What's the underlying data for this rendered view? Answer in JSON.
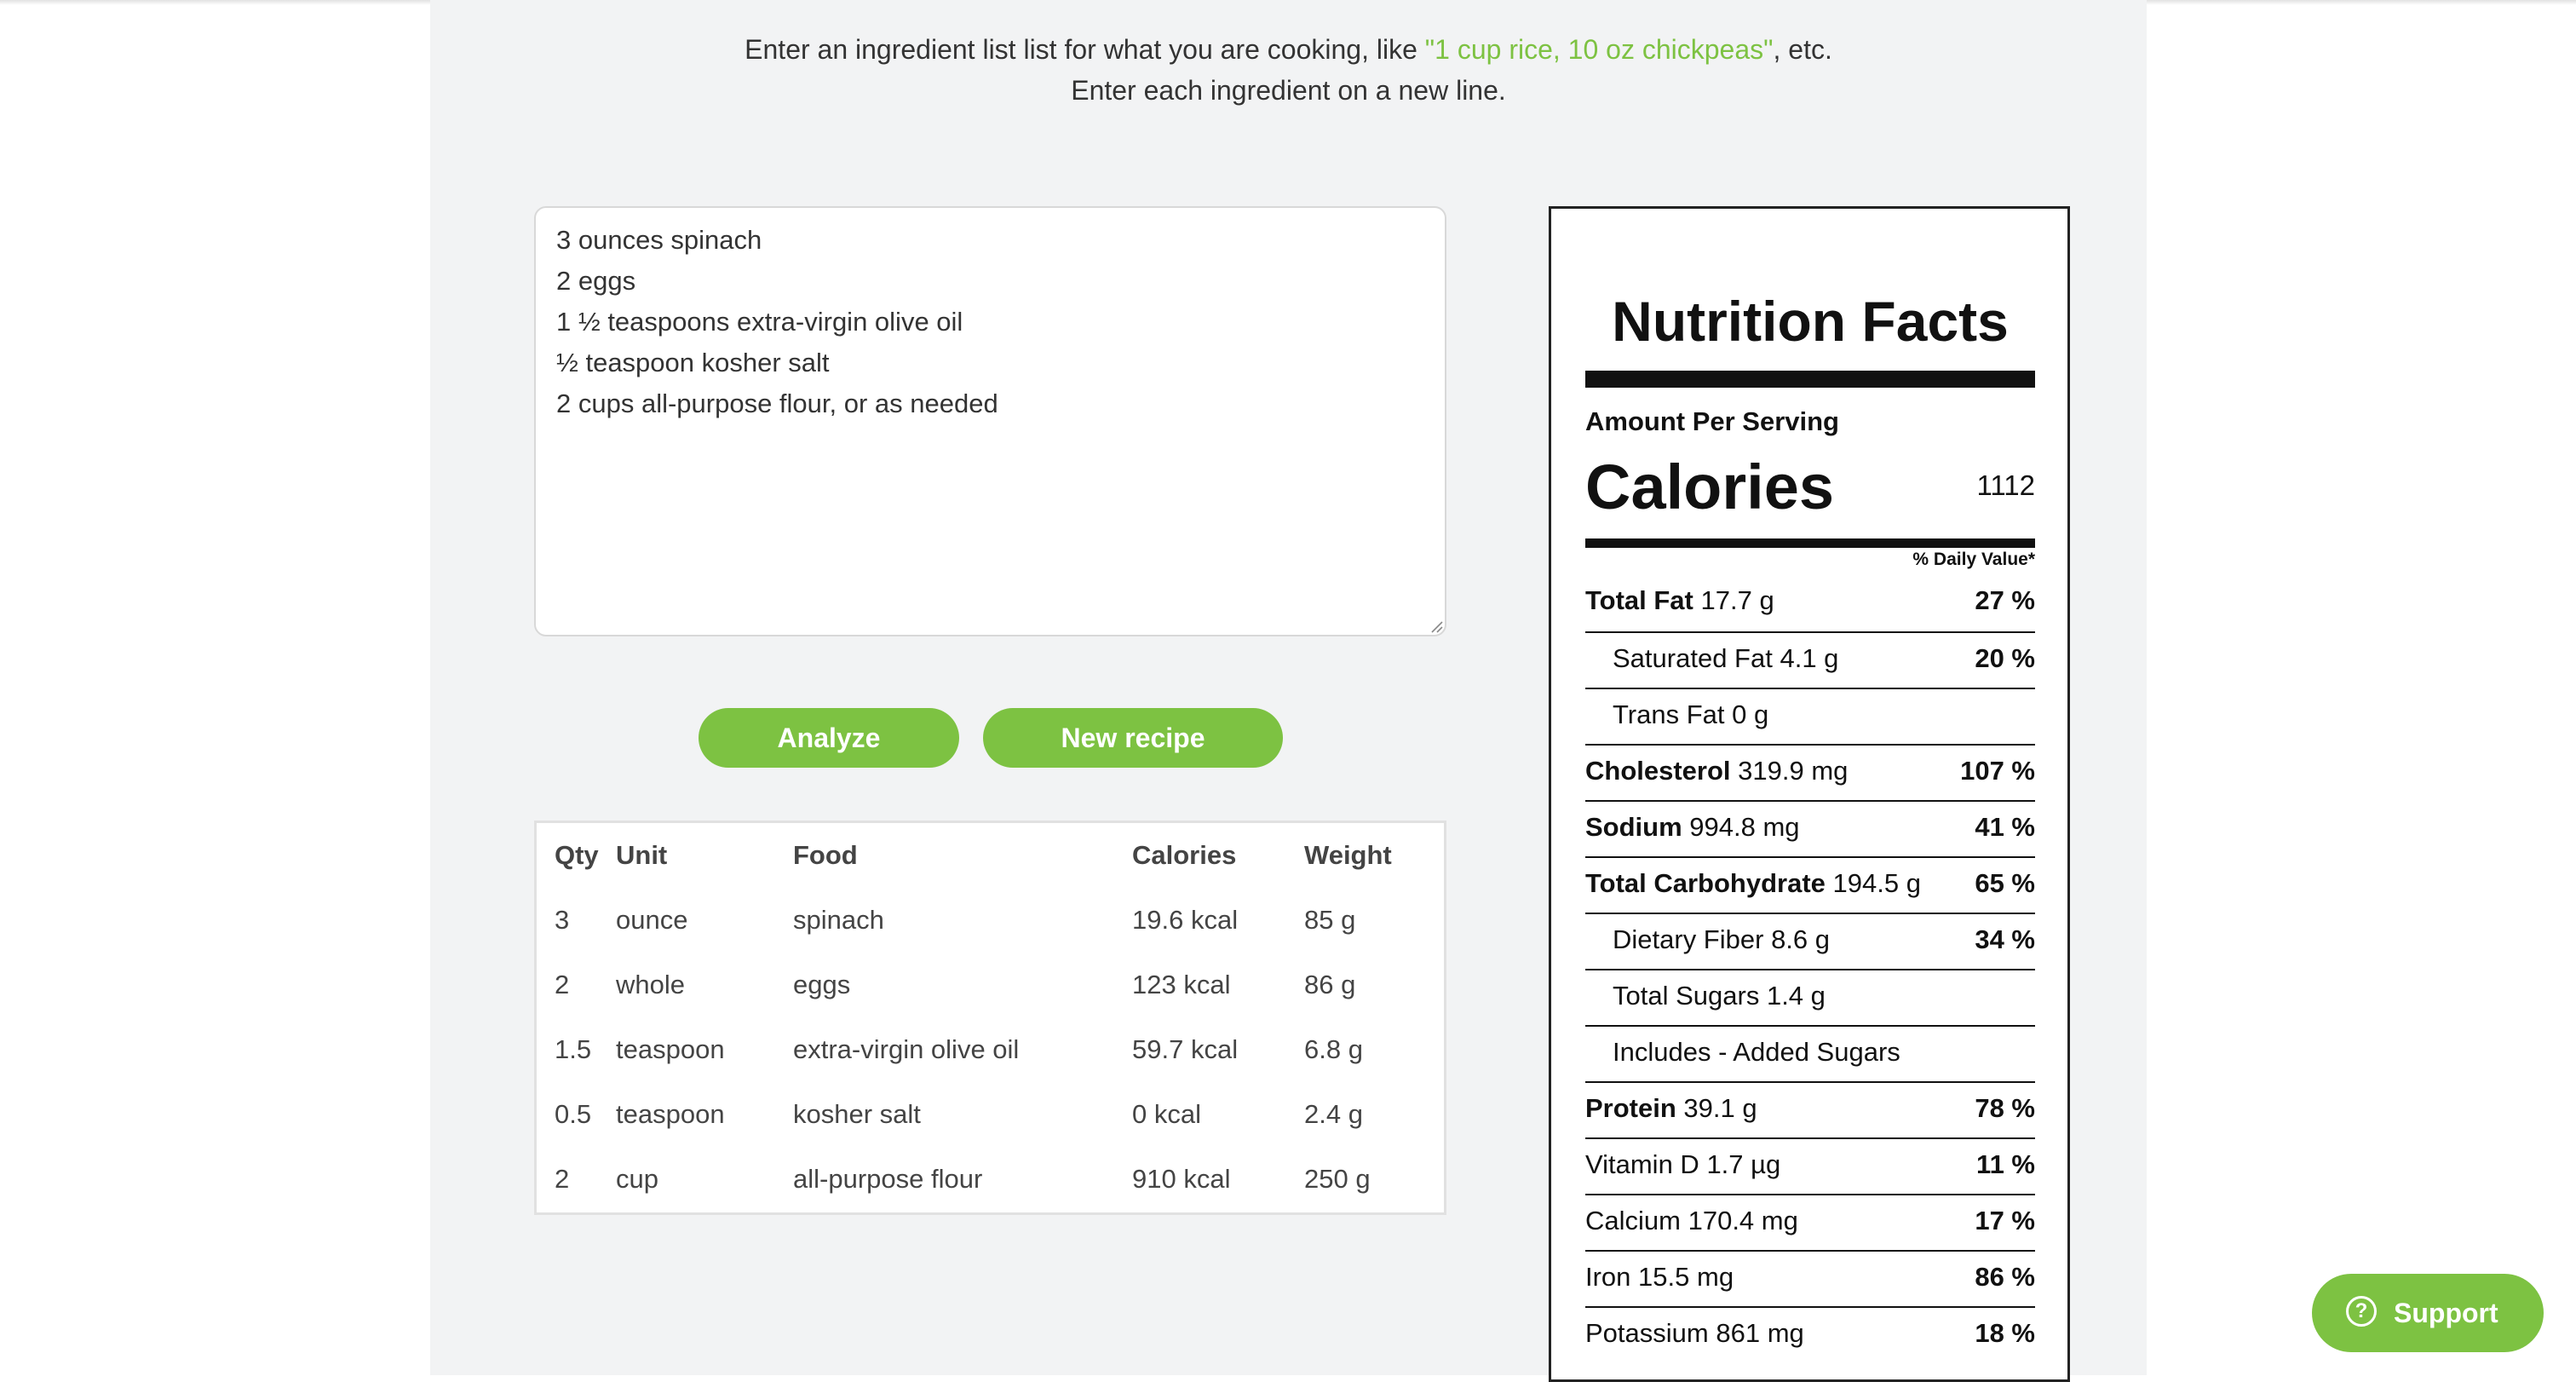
{
  "intro": {
    "line1_before": "Enter an ingredient list list for what you are cooking, like ",
    "line1_example": "\"1 cup rice, 10 oz chickpeas\"",
    "line1_after": ", etc.",
    "line2": "Enter each ingredient on a new line."
  },
  "ingredients_input": {
    "value": "3 ounces spinach\n2 eggs\n1 ½ teaspoons extra-virgin olive oil\n½ teaspoon kosher salt\n2 cups all-purpose flour, or as needed"
  },
  "buttons": {
    "analyze": "Analyze",
    "new_recipe": "New recipe",
    "support": "Support"
  },
  "ingredient_table": {
    "headers": [
      "Qty",
      "Unit",
      "Food",
      "Calories",
      "Weight"
    ],
    "rows": [
      [
        "3",
        "ounce",
        "spinach",
        "19.6 kcal",
        "85 g"
      ],
      [
        "2",
        "whole",
        "eggs",
        "123 kcal",
        "86 g"
      ],
      [
        "1.5",
        "teaspoon",
        "extra-virgin olive oil",
        "59.7 kcal",
        "6.8 g"
      ],
      [
        "0.5",
        "teaspoon",
        "kosher salt",
        "0 kcal",
        "2.4 g"
      ],
      [
        "2",
        "cup",
        "all-purpose flour",
        "910 kcal",
        "250 g"
      ]
    ]
  },
  "nutrition_facts": {
    "title": "Nutrition Facts",
    "amount_per_serving": "Amount Per Serving",
    "calories_label": "Calories",
    "calories_value": "1112",
    "daily_value_header": "% Daily Value*",
    "rows": [
      {
        "name": "Total Fat",
        "amount": "17.7 g",
        "pct": "27 %"
      },
      {
        "name": "Saturated Fat",
        "amount": "4.1 g",
        "pct": "20 %"
      },
      {
        "name": "Trans Fat",
        "amount": "0 g",
        "pct": ""
      },
      {
        "name": "Cholesterol",
        "amount": "319.9 mg",
        "pct": "107 %"
      },
      {
        "name": "Sodium",
        "amount": "994.8 mg",
        "pct": "41 %"
      },
      {
        "name": "Total Carbohydrate",
        "amount": "194.5 g",
        "pct": "65 %"
      },
      {
        "name": "Dietary Fiber",
        "amount": "8.6 g",
        "pct": "34 %"
      },
      {
        "name": "Total Sugars",
        "amount": "1.4 g",
        "pct": ""
      },
      {
        "name": "Includes - Added Sugars",
        "amount": "",
        "pct": ""
      },
      {
        "name": "Protein",
        "amount": "39.1 g",
        "pct": "78 %"
      },
      {
        "name": "Vitamin D",
        "amount": "1.7 µg",
        "pct": "11 %"
      },
      {
        "name": "Calcium",
        "amount": "170.4 mg",
        "pct": "17 %"
      },
      {
        "name": "Iron",
        "amount": "15.5 mg",
        "pct": "86 %"
      },
      {
        "name": "Potassium",
        "amount": "861 mg",
        "pct": "18 %"
      }
    ]
  },
  "colors": {
    "accent": "#7dc242",
    "panel_background": "#f2f3f4",
    "text": "#333333"
  },
  "icons": {
    "support": "question-circle-icon",
    "resize": "resize-grip-icon"
  }
}
